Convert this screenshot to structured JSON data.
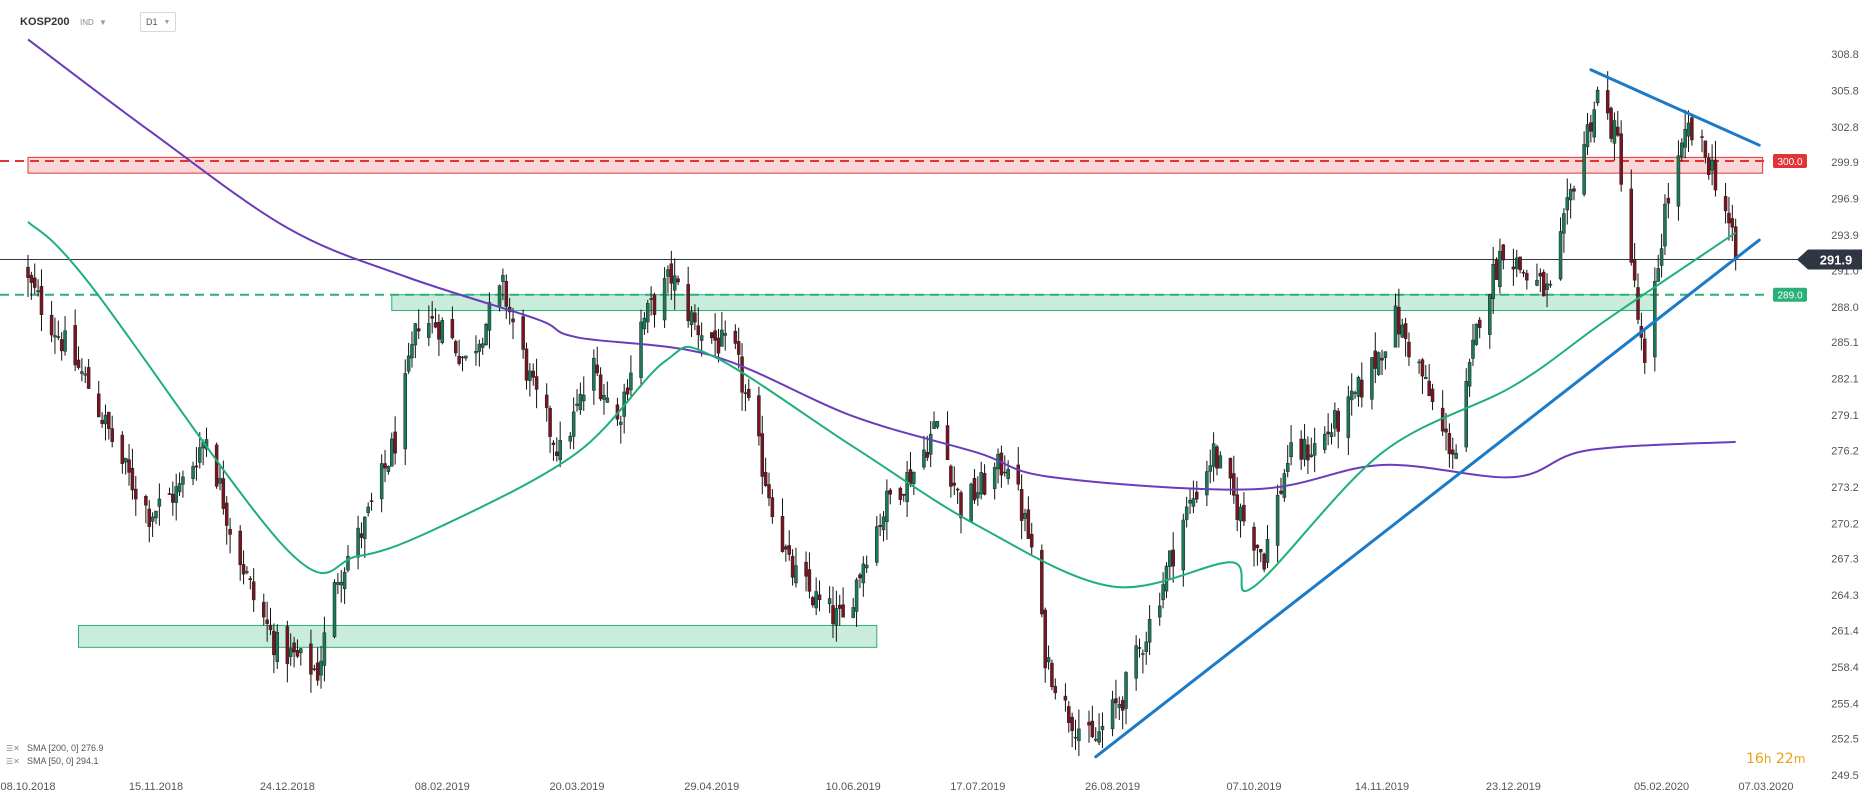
{
  "header": {
    "symbol": "KOSP200",
    "symbol_type": "IND",
    "timeframe": "D1"
  },
  "legend": [
    {
      "label": "SMA [200,  0]  276.9",
      "icon": "sma-settings-icon"
    },
    {
      "label": "SMA [50,  0]  294.1",
      "icon": "sma-settings-icon"
    }
  ],
  "countdown": {
    "hours": "16",
    "h_unit": "h",
    "minutes": "22",
    "m_unit": "m"
  },
  "colors": {
    "bull": "#1a7a57",
    "bear": "#7a1520",
    "sma200": "#6a3cbb",
    "sma50": "#1db07a",
    "trendline": "#1c7ac7",
    "resistance": "#e0343a",
    "support": "#2bb077",
    "current_price": "#333a44"
  },
  "chart_data": {
    "type": "candlestick",
    "title": "",
    "instrument": "KOSP200",
    "timeframe": "D1",
    "x_ticks": [
      "08.10.2018",
      "15.11.2018",
      "24.12.2018",
      "08.02.2019",
      "20.03.2019",
      "29.04.2019",
      "10.06.2019",
      "17.07.2019",
      "26.08.2019",
      "07.10.2019",
      "14.11.2019",
      "23.12.2019",
      "05.02.2020",
      "07.03.2020"
    ],
    "y_ticks": [
      "308.8",
      "305.8",
      "302.8",
      "299.9",
      "296.9",
      "293.9",
      "291.0",
      "288.0",
      "285.1",
      "282.1",
      "279.1",
      "276.2",
      "273.2",
      "270.2",
      "267.3",
      "264.3",
      "261.4",
      "258.4",
      "255.4",
      "252.5",
      "249.5"
    ],
    "ylim": [
      249.5,
      308.8
    ],
    "current_price": "291.9",
    "levels": [
      {
        "label": "300.0",
        "value": 300.0,
        "type": "resistance"
      },
      {
        "label": "289.0",
        "value": 289.0,
        "type": "support"
      }
    ],
    "zones": [
      {
        "from_date": "08.10.2018",
        "to_date": "06.03.2020",
        "low": 299.0,
        "high": 300.3,
        "type": "resistance"
      },
      {
        "from_date": "24.01.2019",
        "to_date": "03.02.2020",
        "low": 287.7,
        "high": 289.0,
        "type": "support"
      },
      {
        "from_date": "23.10.2018",
        "to_date": "17.06.2019",
        "low": 260.0,
        "high": 261.8,
        "type": "support"
      }
    ],
    "trendlines": [
      {
        "from": [
          "21.08.2019",
          251.0
        ],
        "to": [
          "05.03.2020",
          293.5
        ],
        "name": "Uptrend"
      },
      {
        "from": [
          "15.01.2020",
          307.5
        ],
        "to": [
          "05.03.2020",
          301.3
        ],
        "name": "Downtrend"
      }
    ],
    "anchors": [
      {
        "date": "08.10.2018",
        "close": 290.0
      },
      {
        "date": "26.10.2018",
        "close": 281.5
      },
      {
        "date": "06.11.2018",
        "close": 274.5
      },
      {
        "date": "13.11.2018",
        "close": 271.0
      },
      {
        "date": "22.11.2018",
        "close": 273.0
      },
      {
        "date": "30.11.2018",
        "close": 277.5
      },
      {
        "date": "07.12.2018",
        "close": 270.0
      },
      {
        "date": "14.12.2018",
        "close": 264.0
      },
      {
        "date": "21.12.2018",
        "close": 260.0
      },
      {
        "date": "02.01.2019",
        "close": 258.0
      },
      {
        "date": "08.01.2019",
        "close": 266.0
      },
      {
        "date": "16.01.2019",
        "close": 270.0
      },
      {
        "date": "25.01.2019",
        "close": 277.0
      },
      {
        "date": "01.02.2019",
        "close": 287.0
      },
      {
        "date": "08.02.2019",
        "close": 286.5
      },
      {
        "date": "15.02.2019",
        "close": 283.5
      },
      {
        "date": "26.02.2019",
        "close": 289.5
      },
      {
        "date": "07.03.2019",
        "close": 281.0
      },
      {
        "date": "15.03.2019",
        "close": 276.0
      },
      {
        "date": "25.03.2019",
        "close": 283.0
      },
      {
        "date": "01.04.2019",
        "close": 278.5
      },
      {
        "date": "08.04.2019",
        "close": 286.5
      },
      {
        "date": "17.04.2019",
        "close": 290.5
      },
      {
        "date": "24.04.2019",
        "close": 286.5
      },
      {
        "date": "06.05.2019",
        "close": 284.0
      },
      {
        "date": "14.05.2019",
        "close": 275.0
      },
      {
        "date": "22.05.2019",
        "close": 266.5
      },
      {
        "date": "31.05.2019",
        "close": 263.5
      },
      {
        "date": "07.06.2019",
        "close": 262.0
      },
      {
        "date": "14.06.2019",
        "close": 268.0
      },
      {
        "date": "21.06.2019",
        "close": 272.5
      },
      {
        "date": "28.06.2019",
        "close": 274.5
      },
      {
        "date": "05.07.2019",
        "close": 278.5
      },
      {
        "date": "12.07.2019",
        "close": 271.5
      },
      {
        "date": "19.07.2019",
        "close": 273.5
      },
      {
        "date": "26.07.2019",
        "close": 275.5
      },
      {
        "date": "02.08.2019",
        "close": 268.0
      },
      {
        "date": "06.08.2019",
        "close": 259.5
      },
      {
        "date": "12.08.2019",
        "close": 255.0
      },
      {
        "date": "20.08.2019",
        "close": 252.0
      },
      {
        "date": "29.08.2019",
        "close": 256.0
      },
      {
        "date": "06.09.2019",
        "close": 262.0
      },
      {
        "date": "16.09.2019",
        "close": 270.5
      },
      {
        "date": "25.09.2019",
        "close": 276.0
      },
      {
        "date": "02.10.2019",
        "close": 271.5
      },
      {
        "date": "10.10.2019",
        "close": 267.5
      },
      {
        "date": "17.10.2019",
        "close": 275.5
      },
      {
        "date": "25.10.2019",
        "close": 276.5
      },
      {
        "date": "04.11.2019",
        "close": 279.5
      },
      {
        "date": "11.11.2019",
        "close": 283.0
      },
      {
        "date": "18.11.2019",
        "close": 287.0
      },
      {
        "date": "25.11.2019",
        "close": 283.0
      },
      {
        "date": "02.12.2019",
        "close": 277.5
      },
      {
        "date": "06.12.2019",
        "close": 276.0
      },
      {
        "date": "13.12.2019",
        "close": 287.5
      },
      {
        "date": "20.12.2019",
        "close": 293.0
      },
      {
        "date": "27.12.2019",
        "close": 290.5
      },
      {
        "date": "03.01.2020",
        "close": 289.0
      },
      {
        "date": "10.01.2020",
        "close": 298.5
      },
      {
        "date": "17.01.2020",
        "close": 305.5
      },
      {
        "date": "23.01.2020",
        "close": 301.5
      },
      {
        "date": "29.01.2020",
        "close": 287.0
      },
      {
        "date": "31.01.2020",
        "close": 282.5
      },
      {
        "date": "06.02.2020",
        "close": 296.0
      },
      {
        "date": "13.02.2020",
        "close": 302.5
      },
      {
        "date": "20.02.2020",
        "close": 299.5
      },
      {
        "date": "24.02.2020",
        "close": 296.0
      },
      {
        "date": "27.02.2020",
        "close": 291.9
      }
    ],
    "sma200": [
      {
        "date": "08.10.2018",
        "value": 310.0
      },
      {
        "date": "13.11.2018",
        "value": 302.5
      },
      {
        "date": "24.12.2018",
        "value": 294.5
      },
      {
        "date": "28.01.2019",
        "value": 290.5
      },
      {
        "date": "08.03.2019",
        "value": 287.0
      },
      {
        "date": "20.03.2019",
        "value": 285.5
      },
      {
        "date": "29.04.2019",
        "value": 284.0
      },
      {
        "date": "10.06.2019",
        "value": 279.0
      },
      {
        "date": "17.07.2019",
        "value": 276.0
      },
      {
        "date": "08.08.2019",
        "value": 274.0
      },
      {
        "date": "07.10.2019",
        "value": 273.0
      },
      {
        "date": "14.11.2019",
        "value": 275.0
      },
      {
        "date": "23.12.2019",
        "value": 274.0
      },
      {
        "date": "14.01.2020",
        "value": 276.2
      },
      {
        "date": "27.02.2020",
        "value": 276.9
      }
    ],
    "sma50": [
      {
        "date": "08.10.2018",
        "value": 295.0
      },
      {
        "date": "26.10.2018",
        "value": 290.0
      },
      {
        "date": "24.12.2018",
        "value": 268.0
      },
      {
        "date": "14.01.2019",
        "value": 267.5
      },
      {
        "date": "08.02.2019",
        "value": 270.0
      },
      {
        "date": "20.03.2019",
        "value": 276.0
      },
      {
        "date": "15.04.2019",
        "value": 283.5
      },
      {
        "date": "29.04.2019",
        "value": 284.0
      },
      {
        "date": "10.06.2019",
        "value": 276.5
      },
      {
        "date": "17.07.2019",
        "value": 270.0
      },
      {
        "date": "26.08.2019",
        "value": 265.0
      },
      {
        "date": "30.09.2019",
        "value": 267.0
      },
      {
        "date": "07.10.2019",
        "value": 265.0
      },
      {
        "date": "14.11.2019",
        "value": 276.0
      },
      {
        "date": "23.12.2019",
        "value": 281.5
      },
      {
        "date": "20.01.2020",
        "value": 287.0
      },
      {
        "date": "27.02.2020",
        "value": 294.1
      }
    ]
  }
}
